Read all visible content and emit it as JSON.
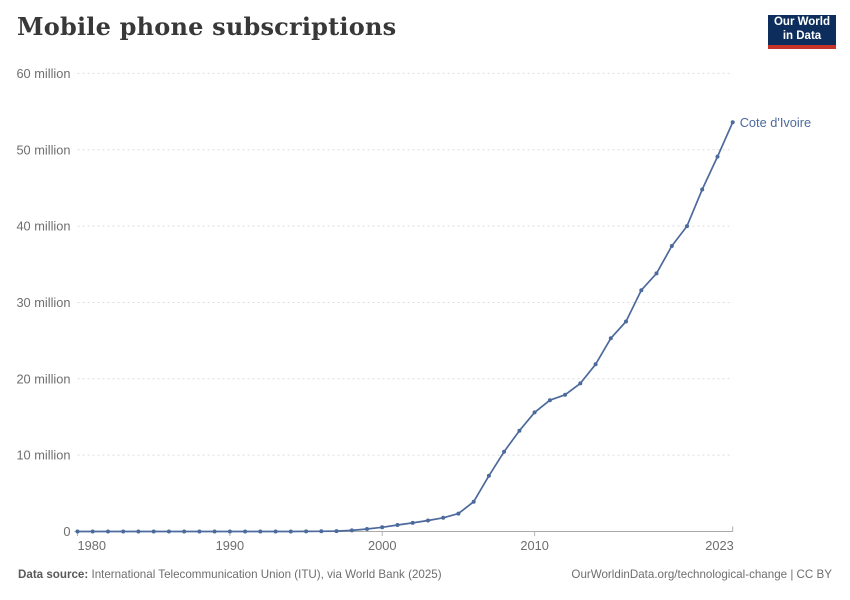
{
  "header": {
    "title": "Mobile phone subscriptions",
    "logo": {
      "line1": "Our World",
      "line2": "in Data",
      "bg_color": "#0d2e5c",
      "bar_color": "#c6342a"
    }
  },
  "chart_data": {
    "type": "line",
    "title": "Mobile phone subscriptions",
    "entity_label": "Cote d'Ivoire",
    "xlim": [
      1980,
      2023
    ],
    "ylim_millions": [
      0,
      60
    ],
    "grid": "horizontal-dashed",
    "legend_position": "line-end-label",
    "x_tick_years": [
      1980,
      1990,
      2000,
      2010,
      2023
    ],
    "y_ticks": [
      {
        "value_millions": 0,
        "label": "0"
      },
      {
        "value_millions": 10,
        "label": "10 million"
      },
      {
        "value_millions": 20,
        "label": "20 million"
      },
      {
        "value_millions": 30,
        "label": "30 million"
      },
      {
        "value_millions": 40,
        "label": "40 million"
      },
      {
        "value_millions": 50,
        "label": "50 million"
      },
      {
        "value_millions": 60,
        "label": "60 million"
      }
    ],
    "x": [
      1980,
      1981,
      1982,
      1983,
      1984,
      1985,
      1986,
      1987,
      1988,
      1989,
      1990,
      1991,
      1992,
      1993,
      1994,
      1995,
      1996,
      1997,
      1998,
      1999,
      2000,
      2001,
      2002,
      2003,
      2004,
      2005,
      2006,
      2007,
      2008,
      2009,
      2010,
      2011,
      2012,
      2013,
      2014,
      2015,
      2016,
      2017,
      2018,
      2019,
      2020,
      2021,
      2022,
      2023
    ],
    "series": [
      {
        "name": "Cote d'Ivoire",
        "color": "#4c6a9c",
        "values_millions": [
          0,
          0,
          0,
          0,
          0,
          0,
          0,
          0,
          0,
          0,
          0,
          0,
          0,
          0.002,
          0.005,
          0.01,
          0.022,
          0.057,
          0.143,
          0.322,
          0.553,
          0.845,
          1.127,
          1.446,
          1.8,
          2.35,
          3.9,
          7.3,
          10.45,
          13.2,
          15.6,
          17.2,
          17.9,
          19.4,
          21.9,
          25.3,
          27.5,
          31.6,
          33.8,
          37.4,
          40.0,
          44.8,
          49.1,
          53.6
        ]
      }
    ]
  },
  "footer": {
    "source_label": "Data source:",
    "source_text": "International Telecommunication Union (ITU), via World Bank (2025)",
    "link": "OurWorldinData.org/technological-change | CC BY"
  }
}
